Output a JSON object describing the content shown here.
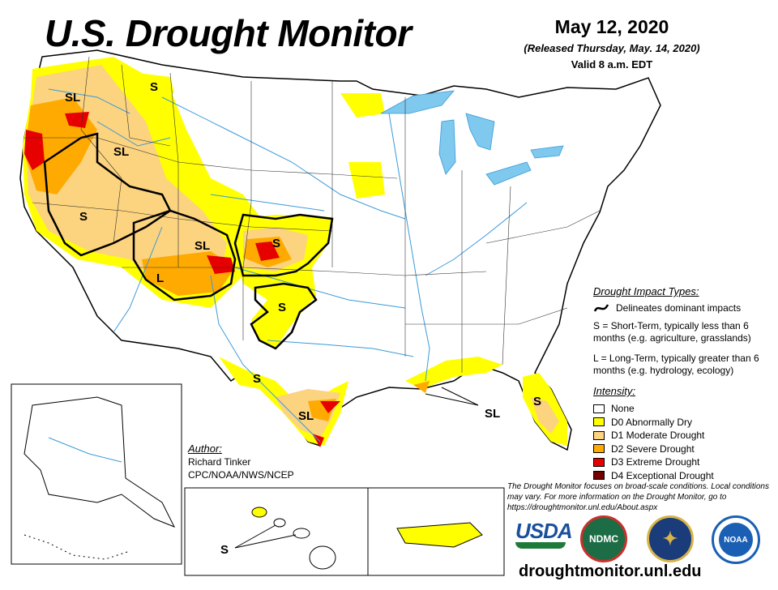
{
  "header": {
    "title": "U.S. Drought Monitor",
    "date": "May 12, 2020",
    "released": "(Released Thursday, May. 14, 2020)",
    "valid": "Valid 8 a.m. EDT"
  },
  "colors": {
    "none": "#ffffff",
    "d0": "#ffff00",
    "d1": "#fcd37f",
    "d2": "#ffaa00",
    "d3": "#e60000",
    "d4": "#730000",
    "water": "#7fc8ee",
    "river": "#3a9ad9",
    "border": "#000000"
  },
  "map_labels": {
    "sl_oregon": "SL",
    "s_montana": "S",
    "sl_idaho": "SL",
    "s_nevada": "S",
    "sl_colorado": "SL",
    "s_kansas": "S",
    "l_arizona": "L",
    "s_oklahoma": "S",
    "s_texas_west": "S",
    "sl_texas_south": "SL",
    "sl_gulf": "SL",
    "s_florida": "S",
    "s_hawaii": "S"
  },
  "legend": {
    "impact_title": "Drought Impact Types:",
    "delineates": "Delineates dominant impacts",
    "short_term": "S = Short-Term, typically less than 6 months (e.g. agriculture, grasslands)",
    "long_term": "L = Long-Term, typically greater than 6 months (e.g. hydrology, ecology)",
    "intensity_title": "Intensity:",
    "intensity": [
      {
        "label": "None",
        "color": "#ffffff"
      },
      {
        "label": "D0 Abnormally Dry",
        "color": "#ffff00"
      },
      {
        "label": "D1 Moderate Drought",
        "color": "#fcd37f"
      },
      {
        "label": "D2 Severe Drought",
        "color": "#ffaa00"
      },
      {
        "label": "D3 Extreme Drought",
        "color": "#e60000"
      },
      {
        "label": "D4 Exceptional Drought",
        "color": "#730000"
      }
    ]
  },
  "author": {
    "label": "Author:",
    "name": "Richard Tinker",
    "org": "CPC/NOAA/NWS/NCEP"
  },
  "note": "The Drought Monitor focuses on broad-scale conditions. Local conditions may vary. For more information on the Drought Monitor, go to https://droughtmonitor.unl.edu/About.aspx",
  "logos": {
    "usda": "USDA",
    "ndmc": "NDMC",
    "noaa": "NOAA",
    "doc_icon": "eagle-seal-icon"
  },
  "url": "droughtmonitor.unl.edu"
}
